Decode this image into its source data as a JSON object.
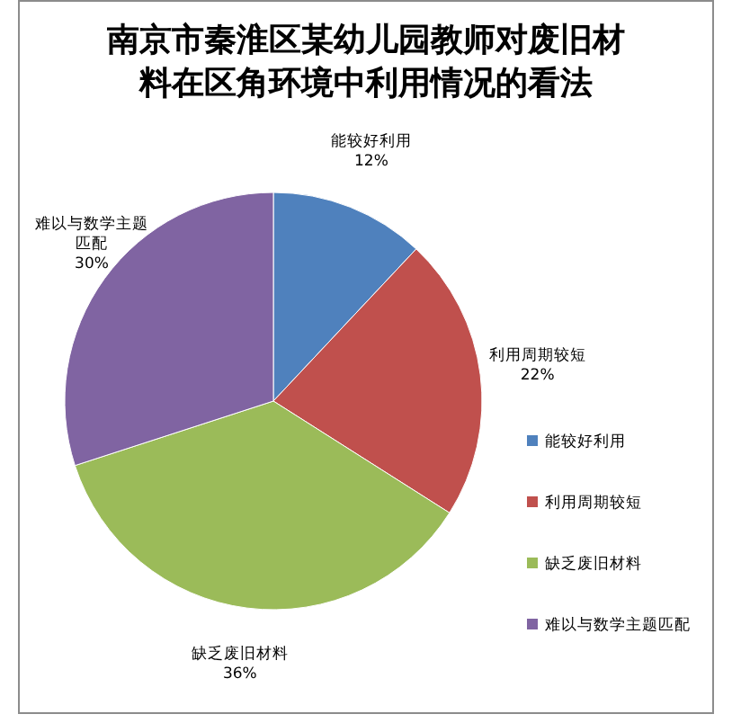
{
  "chart_data": {
    "type": "pie",
    "title": "南京市秦淮区某幼儿园教师对废旧材料在区角环境中利用情况的看法",
    "categories": [
      "能较好利用",
      "利用周期较短",
      "缺乏废旧材料",
      "难以与数学主题匹配"
    ],
    "values": [
      12,
      22,
      36,
      30
    ],
    "value_labels": [
      "12%",
      "22%",
      "36%",
      "30%"
    ],
    "colors": [
      "#4f81bd",
      "#c0504d",
      "#9bbb59",
      "#8064a2"
    ],
    "legend": "right"
  }
}
